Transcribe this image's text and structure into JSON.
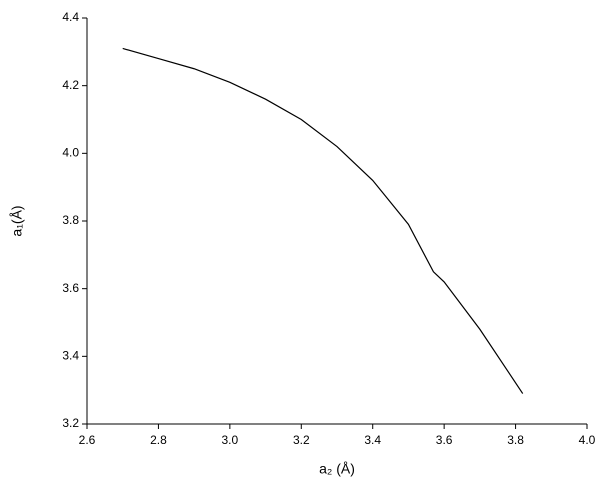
{
  "chart_data": {
    "type": "line",
    "x_label": "a₂ (Å)",
    "y_label": "a₁(Å)",
    "x": [
      2.7,
      2.8,
      2.9,
      3.0,
      3.1,
      3.2,
      3.3,
      3.4,
      3.5,
      3.57,
      3.6,
      3.7,
      3.82
    ],
    "series": [
      {
        "color": "#000000",
        "values": [
          4.31,
          4.28,
          4.25,
          4.21,
          4.16,
          4.1,
          4.02,
          3.92,
          3.79,
          3.65,
          3.62,
          3.48,
          3.29
        ]
      }
    ],
    "xlim": [
      2.6,
      4.0
    ],
    "xticks": [
      2.6,
      2.8,
      {
        "value": 3,
        "label": "3.0"
      },
      3.2,
      3.4,
      3.6,
      3.8,
      {
        "value": 4,
        "label": "4.0"
      }
    ],
    "ylim": [
      3.2,
      4.4
    ],
    "yticks": [
      3.2,
      3.4,
      3.6,
      3.8,
      {
        "value": 4,
        "label": "4.0"
      },
      4.2,
      4.4
    ],
    "grid": false
  }
}
